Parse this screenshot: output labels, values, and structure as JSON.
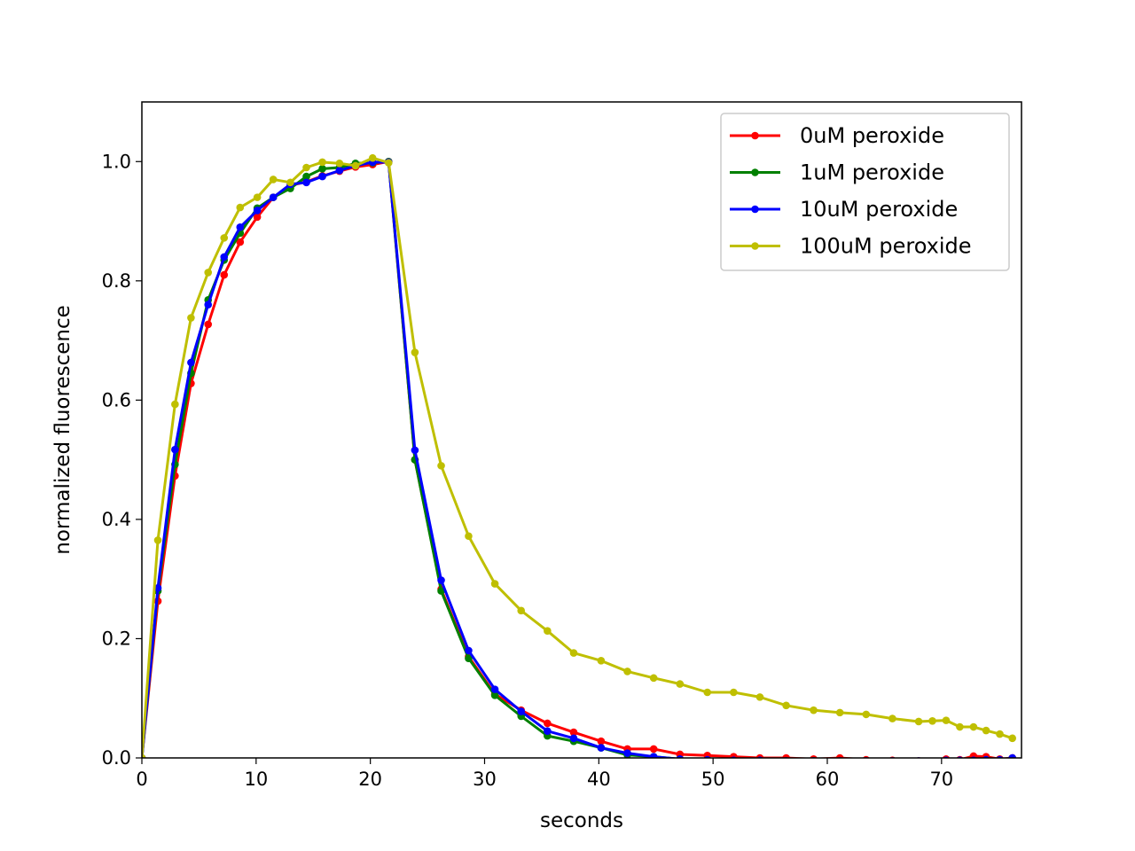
{
  "chart_data": {
    "type": "line",
    "title": "",
    "xlabel": "seconds",
    "ylabel": "normalized fluorescence",
    "xlim": [
      0,
      77
    ],
    "ylim": [
      0,
      1.1
    ],
    "xticks": [
      0,
      10,
      20,
      30,
      40,
      50,
      60,
      70
    ],
    "xtick_labels": [
      "0",
      "10",
      "20",
      "30",
      "40",
      "50",
      "60",
      "70"
    ],
    "yticks": [
      0,
      0.2,
      0.4,
      0.6,
      0.8,
      1.0
    ],
    "ytick_labels": [
      "0.0",
      "0.2",
      "0.4",
      "0.6",
      "0.8",
      "1.0"
    ],
    "grid": false,
    "legend_position": "top-right",
    "series": [
      {
        "name": "0uM peroxide",
        "color": "#ff0000",
        "x": [
          0,
          1.4,
          2.9,
          4.3,
          5.8,
          7.2,
          8.6,
          10.1,
          11.5,
          13.0,
          14.4,
          15.8,
          17.3,
          18.7,
          20.2,
          21.6,
          23.9,
          26.2,
          28.6,
          30.9,
          33.2,
          35.5,
          37.8,
          40.2,
          42.5,
          44.8,
          47.1,
          49.5,
          51.8,
          54.1,
          56.4,
          58.8,
          61.1,
          63.4,
          65.7,
          68.0,
          70.4,
          71.6,
          72.8,
          73.9,
          75.1,
          76.2
        ],
        "y": [
          0.0,
          0.263,
          0.473,
          0.628,
          0.727,
          0.81,
          0.865,
          0.907,
          0.94,
          0.96,
          0.966,
          0.976,
          0.984,
          0.991,
          0.995,
          1.0,
          0.5,
          0.283,
          0.17,
          0.107,
          0.08,
          0.058,
          0.043,
          0.028,
          0.015,
          0.015,
          0.006,
          0.004,
          0.002,
          0.0,
          0.0,
          -0.002,
          0.0,
          -0.003,
          -0.004,
          -0.005,
          -0.002,
          -0.003,
          0.003,
          0.002,
          -0.002,
          0.0
        ]
      },
      {
        "name": "1uM peroxide",
        "color": "#008000",
        "x": [
          0,
          1.4,
          2.9,
          4.3,
          5.8,
          7.2,
          8.6,
          10.1,
          11.5,
          13.0,
          14.4,
          15.8,
          17.3,
          18.7,
          20.2,
          21.6,
          23.9,
          26.2,
          28.6,
          30.9,
          33.2,
          35.5,
          37.8,
          40.2,
          42.5,
          44.8,
          47.1,
          49.5,
          51.8,
          54.1,
          56.4,
          58.8,
          61.1,
          63.4,
          65.7,
          68.0,
          70.4,
          71.6,
          72.8,
          73.9,
          75.1,
          76.2
        ],
        "y": [
          0.0,
          0.28,
          0.492,
          0.645,
          0.768,
          0.835,
          0.88,
          0.922,
          0.94,
          0.955,
          0.975,
          0.988,
          0.99,
          0.997,
          0.998,
          1.0,
          0.5,
          0.28,
          0.167,
          0.105,
          0.07,
          0.037,
          0.028,
          0.017,
          0.005,
          0.002,
          -0.002,
          -0.004,
          -0.005,
          -0.005,
          -0.006,
          -0.005,
          -0.006,
          -0.006,
          -0.006,
          -0.006,
          -0.006,
          -0.006,
          -0.005,
          -0.005,
          -0.005,
          -0.004
        ]
      },
      {
        "name": "10uM peroxide",
        "color": "#0000ff",
        "x": [
          0,
          1.4,
          2.9,
          4.3,
          5.8,
          7.2,
          8.6,
          10.1,
          11.5,
          13.0,
          14.4,
          15.8,
          17.3,
          18.7,
          20.2,
          21.6,
          23.9,
          26.2,
          28.6,
          30.9,
          33.2,
          35.5,
          37.8,
          40.2,
          42.5,
          44.8,
          47.1,
          49.5,
          51.8,
          54.1,
          56.4,
          58.8,
          61.1,
          63.4,
          65.7,
          68.0,
          70.4,
          71.6,
          72.8,
          73.9,
          75.1,
          76.2
        ],
        "y": [
          0.0,
          0.285,
          0.517,
          0.663,
          0.76,
          0.84,
          0.89,
          0.918,
          0.94,
          0.962,
          0.965,
          0.975,
          0.985,
          0.993,
          0.999,
          0.999,
          0.516,
          0.298,
          0.18,
          0.115,
          0.078,
          0.045,
          0.033,
          0.017,
          0.008,
          0.002,
          -0.002,
          -0.003,
          -0.004,
          -0.004,
          -0.005,
          -0.005,
          -0.005,
          -0.005,
          -0.005,
          -0.005,
          -0.004,
          -0.004,
          -0.004,
          -0.003,
          -0.003,
          0.0
        ]
      },
      {
        "name": "100uM peroxide",
        "color": "#bfbf00",
        "x": [
          0,
          1.4,
          2.9,
          4.3,
          5.8,
          7.2,
          8.6,
          10.1,
          11.5,
          13.0,
          14.4,
          15.8,
          17.3,
          18.7,
          20.2,
          21.6,
          23.9,
          26.2,
          28.6,
          30.9,
          33.2,
          35.5,
          37.8,
          40.2,
          42.5,
          44.8,
          47.1,
          49.5,
          51.8,
          54.1,
          56.4,
          58.8,
          61.1,
          63.4,
          65.7,
          68.0,
          69.2,
          70.4,
          71.6,
          72.8,
          73.9,
          75.1,
          76.2
        ],
        "y": [
          0.0,
          0.365,
          0.593,
          0.738,
          0.814,
          0.872,
          0.923,
          0.94,
          0.97,
          0.965,
          0.99,
          0.999,
          0.997,
          0.993,
          1.006,
          0.998,
          0.68,
          0.49,
          0.372,
          0.292,
          0.247,
          0.213,
          0.176,
          0.163,
          0.145,
          0.134,
          0.124,
          0.11,
          0.11,
          0.102,
          0.088,
          0.08,
          0.076,
          0.073,
          0.066,
          0.061,
          0.062,
          0.063,
          0.052,
          0.052,
          0.046,
          0.04,
          0.033
        ]
      }
    ]
  }
}
